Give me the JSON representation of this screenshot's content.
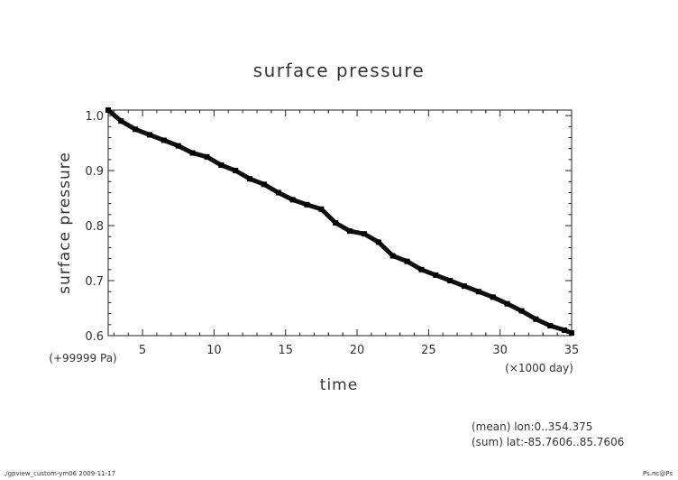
{
  "footer": {
    "left": "./gpview_custom-ym06  2009-11-17",
    "right": "Ps.nc@Ps"
  },
  "notes": {
    "mean": "(mean) lon:0..354.375",
    "sum": "(sum) lat:-85.7606..85.7606"
  },
  "chart_data": {
    "type": "line",
    "title": "surface pressure",
    "xlabel": "time",
    "ylabel": "surface pressure",
    "x_unit": "(×1000 day)",
    "y_unit": "(+99999 Pa)",
    "xlim": [
      2.6,
      35
    ],
    "ylim": [
      0.6,
      1.01
    ],
    "x_ticks": [
      5,
      10,
      15,
      20,
      25,
      30,
      35
    ],
    "x_tick_labels": [
      "5",
      "10",
      "15",
      "20",
      "25",
      "30",
      "35"
    ],
    "y_ticks": [
      0.6,
      0.7,
      0.8,
      0.9,
      1.0
    ],
    "y_tick_labels": [
      "0.6",
      "0.7",
      "0.8",
      "0.9",
      "1.0"
    ],
    "grid": false,
    "series": [
      {
        "x": [
          2.6,
          3.5,
          4.5,
          5.5,
          6.5,
          7.5,
          8.5,
          9.5,
          10.5,
          11.5,
          12.5,
          13.5,
          14.5,
          15.5,
          16.5,
          17.5,
          18.5,
          19.5,
          20.5,
          21.5,
          22.5,
          23.5,
          24.5,
          25.5,
          26.5,
          27.5,
          28.5,
          29.5,
          30.5,
          31.5,
          32.5,
          33.5,
          34.5,
          35
        ],
        "y": [
          1.01,
          0.99,
          0.975,
          0.965,
          0.955,
          0.945,
          0.932,
          0.925,
          0.91,
          0.9,
          0.885,
          0.875,
          0.86,
          0.847,
          0.838,
          0.83,
          0.805,
          0.79,
          0.785,
          0.77,
          0.745,
          0.735,
          0.72,
          0.71,
          0.7,
          0.69,
          0.68,
          0.67,
          0.658,
          0.645,
          0.63,
          0.618,
          0.61,
          0.605
        ]
      }
    ]
  }
}
